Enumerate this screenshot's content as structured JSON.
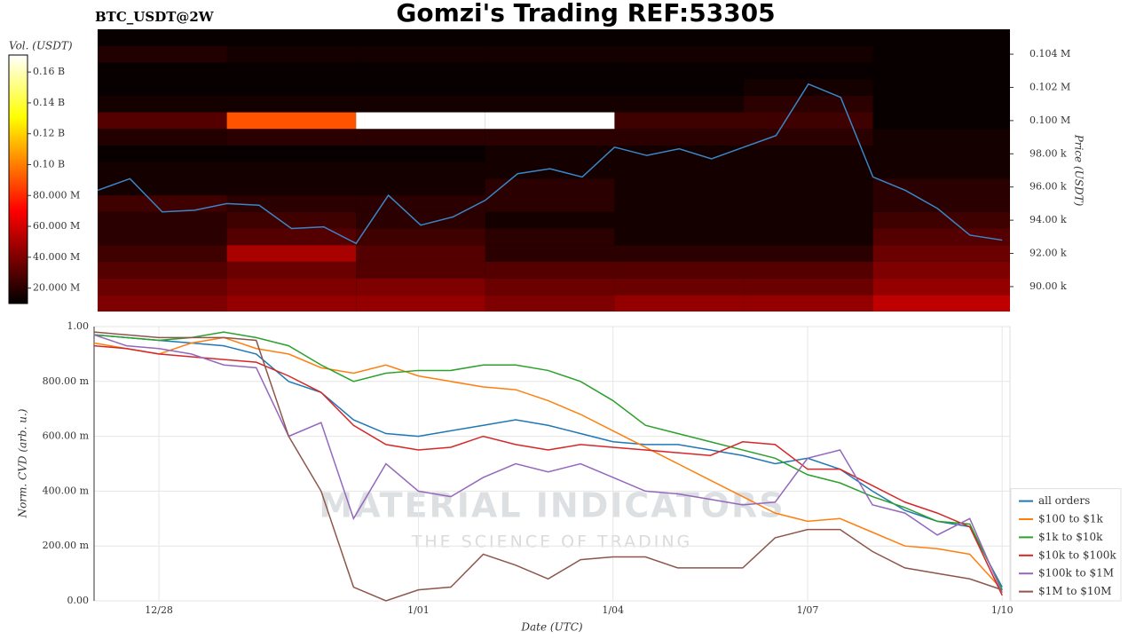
{
  "chart_data": [
    {
      "type": "heatmap",
      "title": "Gomzi's Trading REF:53305",
      "subtitle": "BTC_USDT@2W",
      "x": [
        0,
        0.5,
        1,
        1.5,
        2,
        2.5,
        3,
        3.5,
        4,
        4.5,
        5,
        5.5,
        6,
        6.5,
        7,
        7.5,
        8,
        8.5,
        9,
        9.5,
        10,
        10.5,
        11,
        11.5,
        12,
        12.5,
        13,
        13.5,
        14
      ],
      "xlim": [
        0,
        14.12
      ],
      "price": {
        "color": "#3a86c8",
        "values": [
          95800,
          96500,
          94500,
          94600,
          95000,
          94900,
          93500,
          93600,
          92600,
          95500,
          93700,
          94200,
          95200,
          96800,
          97100,
          96600,
          98400,
          97900,
          98300,
          97700,
          98400,
          99100,
          102200,
          101400,
          96600,
          95800,
          94700,
          93100,
          92800
        ]
      },
      "y2label": "Price (USDT)",
      "ylim": [
        88500,
        105500
      ],
      "yticks": [
        {
          "value": 90000,
          "label": "90.00 k"
        },
        {
          "value": 92000,
          "label": "92.00 k"
        },
        {
          "value": 94000,
          "label": "94.00 k"
        },
        {
          "value": 96000,
          "label": "96.00 k"
        },
        {
          "value": 98000,
          "label": "98.00 k"
        },
        {
          "value": 100000,
          "label": "0.100 M"
        },
        {
          "value": 102000,
          "label": "0.102 M"
        },
        {
          "value": 104000,
          "label": "0.104 M"
        }
      ],
      "heatmap": {
        "x_edges": [
          0,
          2,
          4,
          6,
          8,
          10,
          12,
          14.12
        ],
        "y_edges": [
          88500,
          89500,
          90500,
          91500,
          92500,
          93500,
          94500,
          95500,
          96500,
          97500,
          98500,
          99500,
          100500,
          101500,
          102500,
          103500,
          104500,
          105500
        ],
        "values": [
          [
            40000000,
            45000000,
            45000000,
            40000000,
            45000000,
            45000000,
            55000000
          ],
          [
            35000000,
            40000000,
            40000000,
            35000000,
            35000000,
            35000000,
            45000000
          ],
          [
            30000000,
            35000000,
            30000000,
            30000000,
            30000000,
            30000000,
            40000000
          ],
          [
            25000000,
            50000000,
            30000000,
            20000000,
            20000000,
            20000000,
            35000000
          ],
          [
            20000000,
            30000000,
            25000000,
            20000000,
            15000000,
            15000000,
            30000000
          ],
          [
            20000000,
            25000000,
            20000000,
            15000000,
            15000000,
            15000000,
            25000000
          ],
          [
            25000000,
            20000000,
            20000000,
            20000000,
            15000000,
            15000000,
            20000000
          ],
          [
            15000000,
            15000000,
            15000000,
            20000000,
            15000000,
            15000000,
            20000000
          ],
          [
            15000000,
            15000000,
            15000000,
            15000000,
            15000000,
            15000000,
            15000000
          ],
          [
            12000000,
            12000000,
            12000000,
            15000000,
            15000000,
            15000000,
            15000000
          ],
          [
            18000000,
            20000000,
            20000000,
            20000000,
            20000000,
            20000000,
            15000000
          ],
          [
            30000000,
            90000000,
            171000000,
            171000000,
            25000000,
            25000000,
            12000000
          ],
          [
            15000000,
            15000000,
            15000000,
            15000000,
            15000000,
            20000000,
            12000000
          ],
          [
            12000000,
            12000000,
            12000000,
            12000000,
            12000000,
            15000000,
            12000000
          ],
          [
            12000000,
            12000000,
            12000000,
            12000000,
            12000000,
            12000000,
            12000000
          ],
          [
            18000000,
            15000000,
            15000000,
            15000000,
            15000000,
            15000000,
            12000000
          ],
          [
            12000000,
            12000000,
            12000000,
            12000000,
            12000000,
            12000000,
            12000000
          ]
        ]
      },
      "colormap": "hot",
      "colorbar": {
        "label": "Vol. (USDT)",
        "clim": [
          10000000,
          171000000
        ],
        "ticks": [
          {
            "value": 20000000,
            "label": "20.000 M"
          },
          {
            "value": 40000000,
            "label": "40.000 M"
          },
          {
            "value": 60000000,
            "label": "60.000 M"
          },
          {
            "value": 80000000,
            "label": "80.000 M"
          },
          {
            "value": 100000000,
            "label": "0.10 B"
          },
          {
            "value": 120000000,
            "label": "0.12 B"
          },
          {
            "value": 140000000,
            "label": "0.14 B"
          },
          {
            "value": 160000000,
            "label": "0.16 B"
          }
        ]
      }
    },
    {
      "type": "line",
      "xlabel": "Date (UTC)",
      "ylabel": "Norm. CVD (arb. u.)",
      "watermark": [
        "MATERIAL INDICATORS",
        "THE SCIENCE OF TRADING"
      ],
      "x": [
        0,
        0.5,
        1,
        1.5,
        2,
        2.5,
        3,
        3.5,
        4,
        4.5,
        5,
        5.5,
        6,
        6.5,
        7,
        7.5,
        8,
        8.5,
        9,
        9.5,
        10,
        10.5,
        11,
        11.5,
        12,
        12.5,
        13,
        13.5,
        14
      ],
      "xlim": [
        0,
        14.12
      ],
      "xticks": [
        {
          "value": 1,
          "label": "12/28"
        },
        {
          "value": 5,
          "label": "1/01"
        },
        {
          "value": 8,
          "label": "1/04"
        },
        {
          "value": 11,
          "label": "1/07"
        },
        {
          "value": 14,
          "label": "1/10"
        }
      ],
      "ylim": [
        0,
        1
      ],
      "yticks": [
        {
          "value": 0,
          "label": "0.00"
        },
        {
          "value": 0.2,
          "label": "200.00 m"
        },
        {
          "value": 0.4,
          "label": "400.00 m"
        },
        {
          "value": 0.6,
          "label": "600.00 m"
        },
        {
          "value": 0.8,
          "label": "800.00 m"
        },
        {
          "value": 1,
          "label": "1.00"
        }
      ],
      "grid": true,
      "legend": "lower right",
      "series": [
        {
          "name": "all orders",
          "color": "#1f77b4",
          "values": [
            0.97,
            0.96,
            0.95,
            0.94,
            0.93,
            0.9,
            0.8,
            0.76,
            0.66,
            0.61,
            0.6,
            0.62,
            0.64,
            0.66,
            0.64,
            0.61,
            0.58,
            0.57,
            0.57,
            0.55,
            0.53,
            0.5,
            0.52,
            0.48,
            0.4,
            0.33,
            0.29,
            0.27,
            0.05
          ]
        },
        {
          "name": "$100 to $1k",
          "color": "#ff7f0e",
          "values": [
            0.94,
            0.92,
            0.9,
            0.94,
            0.96,
            0.92,
            0.9,
            0.85,
            0.83,
            0.86,
            0.82,
            0.8,
            0.78,
            0.77,
            0.73,
            0.68,
            0.62,
            0.56,
            0.5,
            0.44,
            0.38,
            0.32,
            0.29,
            0.3,
            0.25,
            0.2,
            0.19,
            0.17,
            0.04
          ]
        },
        {
          "name": "$1k to $10k",
          "color": "#2ca02c",
          "values": [
            0.97,
            0.96,
            0.95,
            0.96,
            0.98,
            0.96,
            0.93,
            0.86,
            0.8,
            0.83,
            0.84,
            0.84,
            0.86,
            0.86,
            0.84,
            0.8,
            0.73,
            0.64,
            0.61,
            0.58,
            0.55,
            0.52,
            0.46,
            0.43,
            0.38,
            0.34,
            0.29,
            0.28,
            0.04
          ]
        },
        {
          "name": "$10k to $100k",
          "color": "#d62728",
          "values": [
            0.93,
            0.92,
            0.9,
            0.89,
            0.88,
            0.87,
            0.82,
            0.76,
            0.64,
            0.57,
            0.55,
            0.56,
            0.6,
            0.57,
            0.55,
            0.57,
            0.56,
            0.55,
            0.54,
            0.53,
            0.58,
            0.57,
            0.48,
            0.48,
            0.42,
            0.36,
            0.32,
            0.27,
            0.02
          ]
        },
        {
          "name": "$100k to $1M",
          "color": "#9467bd",
          "values": [
            0.97,
            0.93,
            0.92,
            0.9,
            0.86,
            0.85,
            0.6,
            0.65,
            0.3,
            0.5,
            0.4,
            0.38,
            0.45,
            0.5,
            0.47,
            0.5,
            0.45,
            0.4,
            0.39,
            0.37,
            0.35,
            0.36,
            0.52,
            0.55,
            0.35,
            0.32,
            0.24,
            0.3,
            0.03
          ]
        },
        {
          "name": "$1M to $10M",
          "color": "#8c564b",
          "values": [
            0.98,
            0.97,
            0.96,
            0.96,
            0.96,
            0.95,
            0.6,
            0.4,
            0.05,
            0,
            0.04,
            0.05,
            0.17,
            0.13,
            0.08,
            0.15,
            0.16,
            0.16,
            0.12,
            0.12,
            0.12,
            0.23,
            0.26,
            0.26,
            0.18,
            0.12,
            0.1,
            0.08,
            0.04
          ]
        }
      ]
    }
  ]
}
